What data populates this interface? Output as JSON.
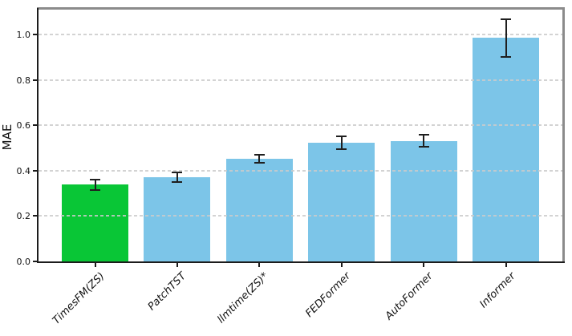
{
  "chart_data": {
    "type": "bar",
    "title": "",
    "xlabel": "",
    "ylabel": "MAE",
    "categories": [
      "TimesFM(ZS)",
      "PatchTST",
      "llmtime(ZS)*",
      "FEDFormer",
      "AutoFormer",
      "Informer"
    ],
    "values": [
      0.338,
      0.372,
      0.453,
      0.523,
      0.532,
      0.985
    ],
    "errors": [
      0.024,
      0.021,
      0.018,
      0.027,
      0.026,
      0.083
    ],
    "bar_colors": [
      "#09c636",
      "#7cc5e8",
      "#7cc5e8",
      "#7cc5e8",
      "#7cc5e8",
      "#7cc5e8"
    ],
    "highlight_color": "#09c636",
    "default_color": "#7cc5e8",
    "error_bar_color": "#1f1f1f",
    "grid_color": "#cbcbcb",
    "yticks": [
      0.0,
      0.2,
      0.4,
      0.6,
      0.8,
      1.0
    ],
    "ytick_labels": [
      "0.0",
      "0.2",
      "0.4",
      "0.6",
      "0.8",
      "1.0"
    ],
    "ylim": [
      0,
      1.11
    ],
    "grid": "horizontal dashed, drawn over bars",
    "legend": null,
    "x_tick_label_style": "italic, rotated 45deg, right-anchored"
  }
}
